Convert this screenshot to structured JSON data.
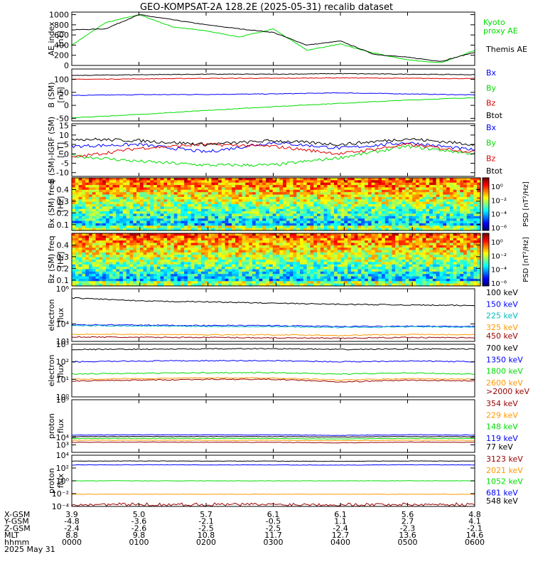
{
  "title": "GEO-KOMPSAT-2A 128.2E (2025-05-31) recalib dataset",
  "date_label": "2025 May 31",
  "orbit_table": {
    "row_labels": [
      "X-GSM",
      "Y-GSM",
      "Z-GSM",
      "MLT",
      "hhmm"
    ],
    "columns": [
      [
        "3.9",
        "-4.8",
        "-2.4",
        "8.8",
        "0000"
      ],
      [
        "5.0",
        "-3.6",
        "-2.6",
        "9.8",
        "0100"
      ],
      [
        "5.7",
        "-2.1",
        "-2.5",
        "10.8",
        "0200"
      ],
      [
        "6.1",
        "-0.5",
        "-2.5",
        "11.7",
        "0300"
      ],
      [
        "6.1",
        "1.1",
        "-2.4",
        "12.7",
        "0400"
      ],
      [
        "5.6",
        "2.7",
        "-2.3",
        "13.6",
        "0500"
      ],
      [
        "4.8",
        "4.1",
        "-2.1",
        "14.6",
        "0600"
      ]
    ]
  },
  "colors": {
    "black": "#000000",
    "blue": "#0000ff",
    "green": "#00dd00",
    "red": "#dd0000",
    "cyan": "#00bbbb",
    "orange": "#ff9900",
    "darkred": "#990000"
  },
  "chart_data": [
    {
      "type": "line",
      "ylabel": "AE index [nT]",
      "ylim": [
        0,
        1050
      ],
      "yticks": [
        "0",
        "200",
        "400",
        "600",
        "800",
        "1000"
      ],
      "x": [
        "00:00",
        "00:30",
        "01:00",
        "01:30",
        "02:00",
        "02:30",
        "03:00",
        "03:30",
        "04:00",
        "04:30",
        "05:00",
        "05:30",
        "06:00"
      ],
      "series": [
        {
          "name": "Kyoto proxy AE",
          "color": "#00dd00",
          "values": [
            400,
            840,
            1000,
            760,
            680,
            560,
            720,
            300,
            420,
            240,
            110,
            50,
            300
          ]
        },
        {
          "name": "Themis AE",
          "color": "#000000",
          "values": [
            700,
            720,
            1000,
            900,
            800,
            720,
            650,
            400,
            480,
            220,
            160,
            80,
            260
          ]
        }
      ]
    },
    {
      "type": "line",
      "ylabel": "B (SM) [nT]",
      "ylim": [
        -60,
        140
      ],
      "yticks": [
        "-50",
        "0",
        "50",
        "100"
      ],
      "x": [
        "00:00",
        "01:00",
        "02:00",
        "03:00",
        "04:00",
        "05:00",
        "06:00"
      ],
      "series": [
        {
          "name": "Bx",
          "color": "#0000ff",
          "values": [
            38,
            41,
            42,
            44,
            48,
            44,
            40
          ]
        },
        {
          "name": "By",
          "color": "#00dd00",
          "values": [
            -48,
            -35,
            -20,
            -5,
            8,
            20,
            30
          ]
        },
        {
          "name": "Bz",
          "color": "#dd0000",
          "values": [
            100,
            102,
            104,
            104,
            106,
            104,
            103
          ]
        },
        {
          "name": "Btot",
          "color": "#000000",
          "values": [
            115,
            118,
            120,
            120,
            122,
            120,
            118
          ]
        }
      ]
    },
    {
      "type": "line",
      "ylabel": "B (SM)-IGRF (SM) [nT]",
      "ylim": [
        -12,
        16
      ],
      "yticks": [
        "-10",
        "-5",
        "0",
        "5",
        "10",
        "15"
      ],
      "x": [
        "00:00",
        "01:00",
        "02:00",
        "03:00",
        "04:00",
        "05:00",
        "06:00"
      ],
      "series": [
        {
          "name": "Bx",
          "color": "#0000ff",
          "values": [
            4,
            5,
            1,
            6,
            3,
            6,
            2
          ]
        },
        {
          "name": "By",
          "color": "#00dd00",
          "values": [
            -1,
            -4,
            -6,
            -6,
            -2,
            4,
            0
          ]
        },
        {
          "name": "Bz",
          "color": "#dd0000",
          "values": [
            -2,
            3,
            5,
            4,
            0,
            5,
            1
          ]
        },
        {
          "name": "Btot",
          "color": "#000000",
          "values": [
            8,
            7,
            5,
            7,
            5,
            8,
            5
          ]
        }
      ]
    },
    {
      "type": "heatmap",
      "ylabel": "Bx (SM) freq [Hz]",
      "yticks": [
        "0.1",
        "0.2",
        "0.3",
        "0.4"
      ],
      "ylim": [
        0.05,
        0.5
      ],
      "colorbar": {
        "label": "PSD [nT²/Hz]",
        "ticks": [
          "10⁰",
          "10⁻²",
          "10⁻⁴",
          "10⁻⁶"
        ]
      }
    },
    {
      "type": "heatmap",
      "ylabel": "Bz (SM) freq [Hz]",
      "yticks": [
        "0.1",
        "0.2",
        "0.3",
        "0.4"
      ],
      "ylim": [
        0.05,
        0.5
      ],
      "colorbar": {
        "label": "PSD [nT²/Hz]",
        "ticks": [
          "10⁰",
          "10⁻²",
          "10⁻⁴",
          "10⁻⁶"
        ]
      }
    },
    {
      "type": "line",
      "ylabel": "electron flux",
      "scale": "log",
      "ylim": [
        1000,
        1000000
      ],
      "yticks": [
        "10³",
        "10⁴",
        "10⁶"
      ],
      "series": [
        {
          "name": "100 keV",
          "color": "#000000",
          "values": [
            300000,
            200000,
            180000,
            150000,
            130000,
            120000,
            110000
          ]
        },
        {
          "name": "150 keV",
          "color": "#0000ff",
          "values": [
            9000,
            8500,
            8000,
            8000,
            7000,
            7500,
            7000
          ]
        },
        {
          "name": "225 keV",
          "color": "#00bbbb",
          "values": [
            8000,
            7600,
            7200,
            7000,
            6200,
            6800,
            6400
          ]
        },
        {
          "name": "325 keV",
          "color": "#ff9900",
          "values": [
            2600,
            2500,
            2400,
            2400,
            2200,
            2500,
            2400
          ]
        },
        {
          "name": "450 keV",
          "color": "#990000",
          "values": [
            1800,
            1700,
            1700,
            1600,
            1500,
            1700,
            1600
          ]
        }
      ]
    },
    {
      "type": "line",
      "ylabel": "electron flux",
      "scale": "log",
      "ylim": [
        1,
        1000
      ],
      "yticks": [
        "10⁰",
        "10¹",
        "10²",
        "10³"
      ],
      "series": [
        {
          "name": "700 keV",
          "color": "#000000",
          "values": [
            500,
            520,
            540,
            560,
            500,
            540,
            520
          ]
        },
        {
          "name": "1350 keV",
          "color": "#0000ff",
          "values": [
            100,
            110,
            115,
            115,
            100,
            112,
            100
          ]
        },
        {
          "name": "1800 keV",
          "color": "#00dd00",
          "values": [
            20,
            22,
            24,
            24,
            20,
            23,
            20
          ]
        },
        {
          "name": "2600 keV",
          "color": "#ff9900",
          "values": [
            10,
            11,
            12,
            12,
            9,
            11,
            10
          ]
        },
        {
          "name": ">2000 keV",
          "color": "#990000",
          "values": [
            8,
            9,
            10,
            10,
            7,
            9,
            8
          ]
        }
      ]
    },
    {
      "type": "line",
      "ylabel": "proton flux",
      "scale": "log",
      "ylim": [
        100,
        1000000000
      ],
      "yticks": [
        "10³",
        "10⁴",
        "10⁹"
      ],
      "series": [
        {
          "name": "354 keV",
          "color": "#990000",
          "values": [
            2200,
            2300,
            2200,
            2200,
            1800,
            2300,
            2200
          ]
        },
        {
          "name": "229 keV",
          "color": "#ff9900",
          "values": [
            4000,
            4200,
            4000,
            4000,
            3500,
            4200,
            4000
          ]
        },
        {
          "name": "148 keV",
          "color": "#00dd00",
          "values": [
            7000,
            7500,
            7000,
            7000,
            6000,
            7500,
            7000
          ]
        },
        {
          "name": "119 keV",
          "color": "#0000ff",
          "values": [
            20000,
            22000,
            21000,
            21000,
            18000,
            22000,
            20000
          ]
        },
        {
          "name": "77 keV",
          "color": "#000000",
          "values": [
            12000,
            13000,
            12500,
            12500,
            11000,
            13000,
            12000
          ]
        }
      ]
    },
    {
      "type": "line",
      "ylabel": "proton flux",
      "scale": "log",
      "ylim": [
        0.0001,
        10000
      ],
      "yticks": [
        "10⁻⁴",
        "10⁻²",
        "10⁰",
        "10²",
        "10⁴"
      ],
      "series": [
        {
          "name": "3123 keV",
          "color": "#990000",
          "values": [
            0.0002,
            0.0002,
            0.0002,
            0.0002,
            0.0002,
            0.0002,
            0.0002
          ]
        },
        {
          "name": "2021 keV",
          "color": "#ff9900",
          "values": [
            0.008,
            0.008,
            0.008,
            0.008,
            0.008,
            0.008,
            0.008
          ]
        },
        {
          "name": "1052 keV",
          "color": "#00dd00",
          "values": [
            1,
            1,
            1,
            1,
            1,
            1,
            1
          ]
        },
        {
          "name": "681 keV",
          "color": "#0000ff",
          "values": [
            300,
            320,
            300,
            300,
            280,
            320,
            300
          ]
        },
        {
          "name": "548 keV",
          "color": "#000000",
          "values": [
            1200,
            1250,
            1200,
            1200,
            1100,
            1250,
            1200
          ]
        }
      ]
    }
  ]
}
